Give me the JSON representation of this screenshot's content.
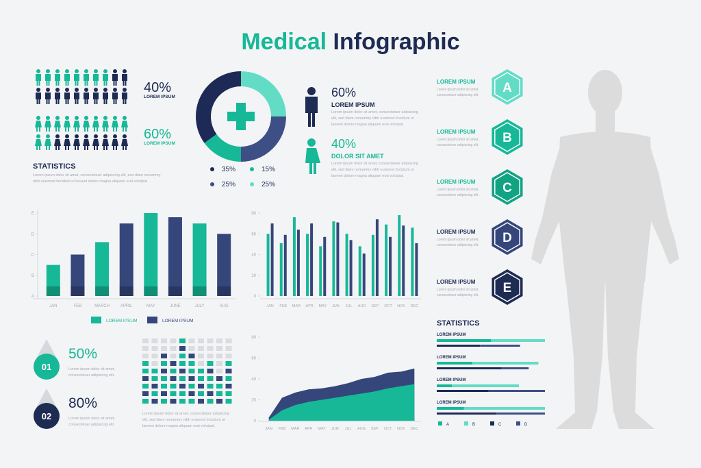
{
  "title": {
    "part1": "Medical",
    "part2": "Infographic"
  },
  "people": [
    {
      "percent": "40%",
      "label": "LOREM IPSUM"
    },
    {
      "percent": "60%",
      "label": "LOREM IPSUM"
    }
  ],
  "statistics_left": {
    "heading": "STATISTICS",
    "text": [
      "Lorem ipsum dolor sit amet, consectetuer adipiscing elit, sed diam nonummy",
      "nibh euismod tincidunt ut laoreet dolore magna aliquam erat volutpat."
    ]
  },
  "gender": [
    {
      "percent": "60%",
      "heading": "LOREM IPSUM",
      "text": [
        "Lorem ipsum dolor sit amet, consectetuer adipiscing",
        "elit, sed diam nonummy nibh euismod tincidunt ut",
        "laoreet dolore magna aliquam erat volutpat."
      ]
    },
    {
      "percent": "40%",
      "heading": "DOLOR SIT AMET",
      "text": [
        "Lorem ipsum dolor sit amet, consectetuer adipiscing",
        "elit, sed diam nonummy nibh euismod tincidunt ut",
        "laoreet dolore magna aliquam erat volutpat."
      ]
    }
  ],
  "drops": [
    {
      "percent": "50%",
      "number": "01",
      "text": [
        "Lorem ipsum dolor sit amet,",
        "consectetuer adipiscing elit."
      ]
    },
    {
      "percent": "80%",
      "number": "02",
      "text": [
        "Lorem ipsum dolor sit amet,",
        "consectetuer adipiscing elit."
      ]
    }
  ],
  "grid_text": [
    "Lorem ipsum dolor sit amet, consectetuer adipiscing",
    "elit, sed diam nonummy nibh euismod tincidunt ut",
    "laoreet dolore magna aliquam erat volutpat."
  ],
  "hexagons": [
    {
      "letter": "A",
      "label": "LOREM IPSUM",
      "text": [
        "Lorem ipsum dolor sit amet,",
        "consectetuer adipiscing elit."
      ]
    },
    {
      "letter": "B",
      "label": "LOREM IPSUM",
      "text": [
        "Lorem ipsum dolor sit amet,",
        "consectetuer adipiscing elit."
      ]
    },
    {
      "letter": "C",
      "label": "LOREM IPSUM",
      "text": [
        "Lorem ipsum dolor sit amet,",
        "consectetuer adipiscing elit."
      ]
    },
    {
      "letter": "D",
      "label": "LOREM IPSUM",
      "text": [
        "Lorem ipsum dolor sit amet,",
        "consectetuer adipiscing elit."
      ]
    },
    {
      "letter": "E",
      "label": "LOREM IPSUM",
      "text": [
        "Lorem ipsum dolor sit amet,",
        "consectetuer adipiscing elit."
      ]
    }
  ],
  "chart_data": [
    {
      "type": "donut",
      "series": [
        {
          "name": "35%",
          "color": "#1d2a55",
          "values": [
            35
          ]
        },
        {
          "name": "15%",
          "color": "#17b897",
          "values": [
            15
          ]
        },
        {
          "name": "25%",
          "color": "#3e4f86",
          "values": [
            25
          ]
        },
        {
          "name": "25%",
          "color": "#63dcc6",
          "values": [
            25
          ]
        }
      ]
    },
    {
      "type": "bar",
      "categories": [
        "JAN",
        "FEB",
        "MARCH",
        "APRIL",
        "MAY",
        "JUNE",
        "JULY",
        "AUG"
      ],
      "series": [
        {
          "name": "LOREM IPSUM",
          "color": "#17b897",
          "values": [
            1.5,
            null,
            2.6,
            null,
            4.0,
            null,
            3.5,
            null
          ]
        },
        {
          "name": "LOREM IPSUM",
          "color": "#35467a",
          "values": [
            null,
            2.0,
            null,
            3.5,
            null,
            3.8,
            null,
            3.0
          ]
        }
      ],
      "ylim": [
        0,
        4
      ],
      "yticks": [
        {
          "value": 0,
          "label": "A"
        },
        {
          "value": 1,
          "label": "B"
        },
        {
          "value": 2,
          "label": "C"
        },
        {
          "value": 3,
          "label": "D"
        },
        {
          "value": 4,
          "label": "E"
        }
      ]
    },
    {
      "type": "grouped-bar",
      "categories": [
        "JAN",
        "FEB",
        "MAR",
        "APR",
        "MAY",
        "JUN",
        "JUL",
        "AUG",
        "SEP",
        "OCT",
        "NOV",
        "DEC"
      ],
      "series": [
        {
          "name": "teal",
          "color": "#17b897",
          "values": [
            60,
            51,
            76,
            60,
            48,
            72,
            60,
            48,
            59,
            69,
            78,
            66
          ]
        },
        {
          "name": "navy",
          "color": "#35467a",
          "values": [
            70,
            59,
            64,
            70,
            57,
            71,
            54,
            41,
            74,
            57,
            68,
            51
          ]
        }
      ],
      "ylim": [
        0,
        80
      ],
      "yticks": [
        0,
        20,
        40,
        60,
        80
      ]
    },
    {
      "type": "area",
      "categories": [
        "JAN",
        "FEB",
        "MAR",
        "APR",
        "MAY",
        "JUN",
        "JUL",
        "AUG",
        "SEP",
        "OCT",
        "NOV",
        "DEC"
      ],
      "series": [
        {
          "name": "navy",
          "color": "#35467a",
          "values": [
            3,
            22,
            27,
            30,
            31,
            33,
            36,
            40,
            42,
            46,
            47,
            50
          ]
        },
        {
          "name": "teal",
          "color": "#17b897",
          "values": [
            1,
            10,
            15,
            18,
            20,
            22,
            24,
            26,
            28,
            31,
            33,
            35
          ]
        }
      ],
      "ylim": [
        0,
        80
      ],
      "yticks": [
        0,
        20,
        40,
        60,
        80
      ]
    },
    {
      "type": "hbar",
      "title": "STATISTICS",
      "categories": [
        "LOREM IPSUM",
        "LOREM IPSUM",
        "LOREM IPSUM",
        "LOREM IPSUM"
      ],
      "series": [
        {
          "name": "A",
          "color": "#17b897",
          "values": [
            50,
            33,
            14,
            25
          ]
        },
        {
          "name": "B",
          "color": "#63dcc6",
          "values": [
            50,
            61,
            62,
            75
          ]
        },
        {
          "name": "C",
          "color": "#1d2a55",
          "values": [
            40,
            60,
            48,
            55
          ]
        },
        {
          "name": "D",
          "color": "#3e4f86",
          "values": [
            37,
            25,
            52,
            45
          ]
        }
      ],
      "xlim": [
        0,
        100
      ]
    }
  ]
}
